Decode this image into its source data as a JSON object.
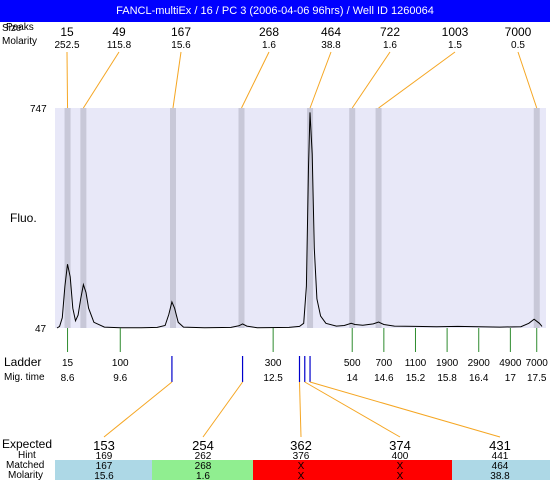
{
  "title": "FANCL-multiEx / 16 / PC 3 (2006-04-06 96hrs) / Well ID 1260064",
  "row_labels": {
    "peaks": "Peaks",
    "size": "Size",
    "molarity": "Molarity",
    "fluo": "Fluo.",
    "ladder": "Ladder",
    "mig_time": "Mig. time",
    "expected": "Expected",
    "hint": "Hint",
    "matched": "Matched",
    "bottom_molarity": "Molarity"
  },
  "colors": {
    "title_bg": "#0000ff",
    "plot_bg": "#e8e8f8",
    "band": "#c8c8d8",
    "orange": "#f5a623",
    "green": "#2e8b2e",
    "blue": "#0000cc",
    "red_text": "#ff0000",
    "cell_blue": "#add8e6",
    "cell_green": "#90ee90",
    "cell_red": "#ff0000"
  },
  "chart_data": {
    "type": "line",
    "ylabel": "Fluo.",
    "ylim": [
      47,
      747
    ],
    "y_ticks": [
      "747",
      "47"
    ],
    "peaks": [
      {
        "size": "15",
        "molarity": "252.5"
      },
      {
        "size": "49",
        "molarity": "115.8"
      },
      {
        "size": "167",
        "molarity": "15.6"
      },
      {
        "size": "268",
        "molarity": "1.6"
      },
      {
        "size": "464",
        "molarity": "38.8"
      },
      {
        "size": "722",
        "molarity": "1.6"
      },
      {
        "size": "1003",
        "molarity": "1.5"
      },
      {
        "size": "7000",
        "molarity": "0.5"
      }
    ],
    "peak_mig_times": [
      8.6,
      8.9,
      10.6,
      11.9,
      13.2,
      14.0,
      14.5,
      17.5
    ],
    "trace_x_range": [
      8.4,
      17.6
    ],
    "trace": [
      [
        8.4,
        47
      ],
      [
        8.45,
        52
      ],
      [
        8.5,
        80
      ],
      [
        8.55,
        180
      ],
      [
        8.6,
        250
      ],
      [
        8.65,
        210
      ],
      [
        8.7,
        110
      ],
      [
        8.75,
        70
      ],
      [
        8.8,
        88
      ],
      [
        8.85,
        140
      ],
      [
        8.9,
        185
      ],
      [
        8.95,
        160
      ],
      [
        9.0,
        110
      ],
      [
        9.1,
        65
      ],
      [
        9.3,
        50
      ],
      [
        9.6,
        48
      ],
      [
        10.0,
        48
      ],
      [
        10.3,
        49
      ],
      [
        10.45,
        55
      ],
      [
        10.52,
        90
      ],
      [
        10.58,
        130
      ],
      [
        10.63,
        110
      ],
      [
        10.7,
        65
      ],
      [
        10.8,
        50
      ],
      [
        11.2,
        48
      ],
      [
        11.7,
        49
      ],
      [
        11.85,
        54
      ],
      [
        11.92,
        60
      ],
      [
        12.0,
        53
      ],
      [
        12.2,
        48
      ],
      [
        12.8,
        49
      ],
      [
        13.0,
        52
      ],
      [
        13.08,
        62
      ],
      [
        13.13,
        180
      ],
      [
        13.17,
        560
      ],
      [
        13.2,
        733
      ],
      [
        13.24,
        600
      ],
      [
        13.28,
        300
      ],
      [
        13.33,
        140
      ],
      [
        13.4,
        85
      ],
      [
        13.5,
        62
      ],
      [
        13.7,
        53
      ],
      [
        13.85,
        55
      ],
      [
        13.98,
        62
      ],
      [
        14.05,
        58
      ],
      [
        14.2,
        56
      ],
      [
        14.4,
        60
      ],
      [
        14.5,
        66
      ],
      [
        14.6,
        58
      ],
      [
        14.8,
        53
      ],
      [
        15.2,
        52
      ],
      [
        15.6,
        51
      ],
      [
        16.0,
        52
      ],
      [
        16.4,
        51
      ],
      [
        16.8,
        50
      ],
      [
        17.2,
        51
      ],
      [
        17.35,
        62
      ],
      [
        17.45,
        75
      ],
      [
        17.55,
        62
      ],
      [
        17.6,
        52
      ]
    ],
    "ladder": [
      {
        "size": "15",
        "mig": "8.6",
        "t": 8.6
      },
      {
        "size": "100",
        "mig": "9.6",
        "t": 9.6
      },
      {
        "size": "300",
        "mig": "12.5",
        "t": 12.5
      },
      {
        "size": "500",
        "mig": "14",
        "t": 14.0
      },
      {
        "size": "700",
        "mig": "14.6",
        "t": 14.6
      },
      {
        "size": "1100",
        "mig": "15.2",
        "t": 15.2
      },
      {
        "size": "1900",
        "mig": "15.8",
        "t": 15.8
      },
      {
        "size": "2900",
        "mig": "16.4",
        "t": 16.4
      },
      {
        "size": "4900",
        "mig": "17",
        "t": 17.0
      },
      {
        "size": "7000",
        "mig": "17.5",
        "t": 17.5
      }
    ],
    "expected": [
      {
        "value": "153",
        "hint": "169",
        "matched": "167",
        "molarity": "15.6",
        "status": "matched",
        "mig": 10.58
      },
      {
        "value": "254",
        "hint": "262",
        "matched": "268",
        "molarity": "1.6",
        "status": "matched",
        "mig": 11.92
      },
      {
        "value": "362",
        "hint": "376",
        "matched": "X",
        "molarity": "X",
        "status": "missing",
        "mig": 13.0
      },
      {
        "value": "374",
        "hint": "400",
        "matched": "X",
        "molarity": "X",
        "status": "missing",
        "mig": 13.1
      },
      {
        "value": "431",
        "hint": "441",
        "matched": "464",
        "molarity": "38.8",
        "status": "matched",
        "mig": 13.2
      }
    ]
  }
}
